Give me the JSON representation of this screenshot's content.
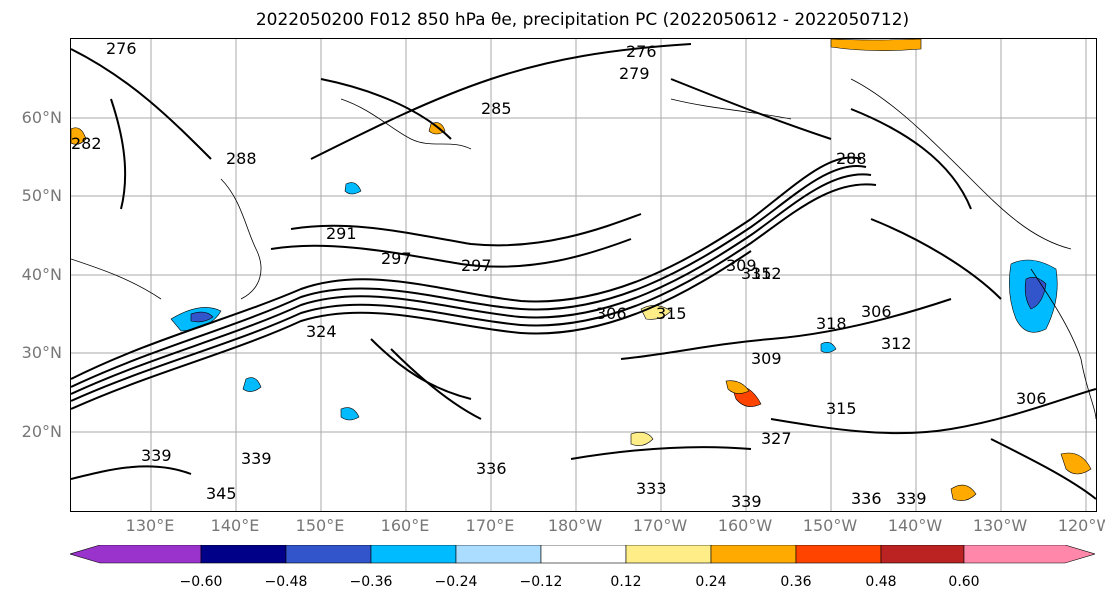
{
  "title": "2022050200 F012 850 hPa θe, precipitation PC (2022050612 - 2022050712)",
  "map": {
    "lat_labels": [
      "60°N",
      "50°N",
      "40°N",
      "30°N",
      "20°N"
    ],
    "lon_labels": [
      "130°E",
      "140°E",
      "150°E",
      "160°E",
      "170°E",
      "180°W",
      "170°W",
      "160°W",
      "150°W",
      "140°W",
      "130°W",
      "120°W"
    ],
    "contour_labels": [
      "276",
      "276",
      "279",
      "285",
      "282",
      "288",
      "288",
      "291",
      "297",
      "297",
      "306",
      "309",
      "312",
      "315",
      "315",
      "318",
      "306",
      "309",
      "312",
      "315",
      "327",
      "336",
      "339",
      "339",
      "333",
      "339",
      "336",
      "339",
      "306",
      "324",
      "345"
    ],
    "land_outline_color": "#000000",
    "gridline_color": "#aaaaaa"
  },
  "colorbar": {
    "colors": [
      "#9933cc",
      "#000088",
      "#3355cc",
      "#00bbff",
      "#aaddff",
      "#ffffff",
      "#ffee88",
      "#ffaa00",
      "#ff4400",
      "#bb2222",
      "#ff88aa"
    ],
    "tick_labels": [
      "−0.60",
      "−0.48",
      "−0.36",
      "−0.24",
      "−0.12",
      "0.12",
      "0.24",
      "0.36",
      "0.48",
      "0.60"
    ]
  }
}
